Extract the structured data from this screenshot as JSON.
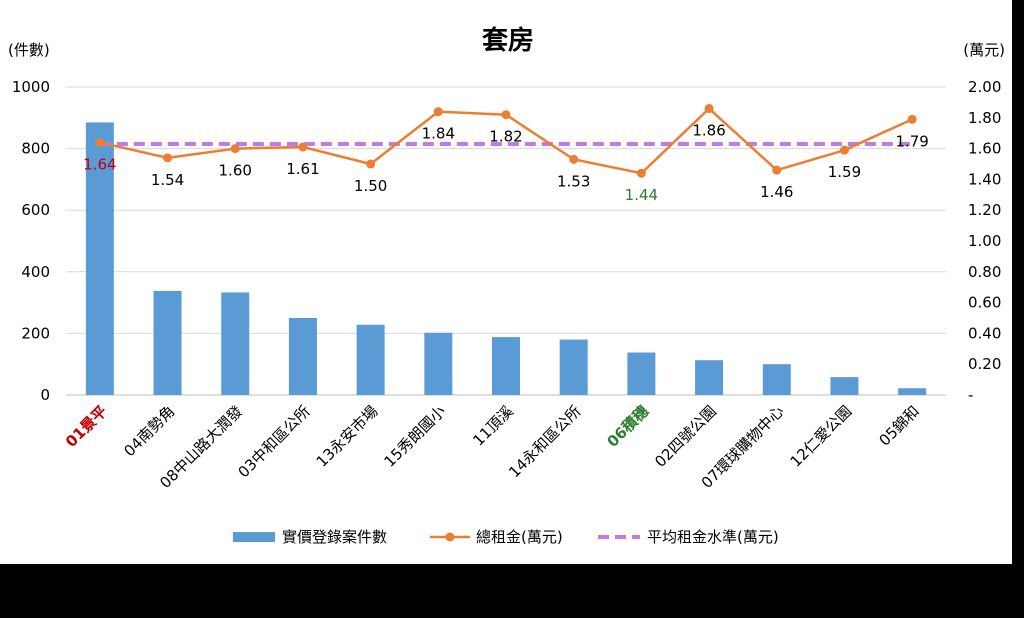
{
  "chart_data": {
    "type": "bar",
    "title": "套房",
    "y_left_label": "(件數)",
    "y_right_label": "(萬元)",
    "y_left_ticks": [
      "0",
      "200",
      "400",
      "600",
      "800",
      "1000"
    ],
    "y_right_ticks": [
      "-",
      "0.20",
      "0.40",
      "0.60",
      "0.80",
      "1.00",
      "1.20",
      "1.40",
      "1.60",
      "1.80",
      "2.00"
    ],
    "ylim_left": [
      0,
      1000
    ],
    "ylim_right": [
      0,
      2.0
    ],
    "grid": true,
    "legend_position": "bottom",
    "categories": [
      "01景平",
      "04南勢角",
      "08中山路大潤發",
      "03中和區公所",
      "13永安市場",
      "15秀朗國小",
      "11頂溪",
      "14永和區公所",
      "06積穗",
      "02四號公園",
      "07環球購物中心",
      "12仁愛公園",
      "05錦和"
    ],
    "category_colors": [
      "#C00000",
      "#000000",
      "#000000",
      "#000000",
      "#000000",
      "#000000",
      "#000000",
      "#000000",
      "#2E7D32",
      "#000000",
      "#000000",
      "#000000",
      "#000000"
    ],
    "series": [
      {
        "name": "實價登錄案件數",
        "type": "bar",
        "axis": "left",
        "color": "#5B9BD5",
        "values": [
          885,
          338,
          333,
          250,
          228,
          202,
          188,
          180,
          138,
          113,
          100,
          58,
          22
        ]
      },
      {
        "name": "總租金(萬元)",
        "type": "line",
        "axis": "right",
        "color": "#ED7D31",
        "values": [
          1.64,
          1.54,
          1.6,
          1.61,
          1.5,
          1.84,
          1.82,
          1.53,
          1.44,
          1.86,
          1.46,
          1.59,
          1.79
        ],
        "labels": [
          "1.64",
          "1.54",
          "1.60",
          "1.61",
          "1.50",
          "1.84",
          "1.82",
          "1.53",
          "1.44",
          "1.86",
          "1.46",
          "1.59",
          "1.79"
        ],
        "label_colors": [
          "#C00000",
          "#000000",
          "#000000",
          "#000000",
          "#000000",
          "#000000",
          "#000000",
          "#000000",
          "#2E7D32",
          "#000000",
          "#000000",
          "#000000",
          "#000000"
        ]
      },
      {
        "name": "平均租金水準(萬元)",
        "type": "line-dashed",
        "axis": "right",
        "color": "#C27BE0",
        "value": 1.63
      }
    ]
  }
}
